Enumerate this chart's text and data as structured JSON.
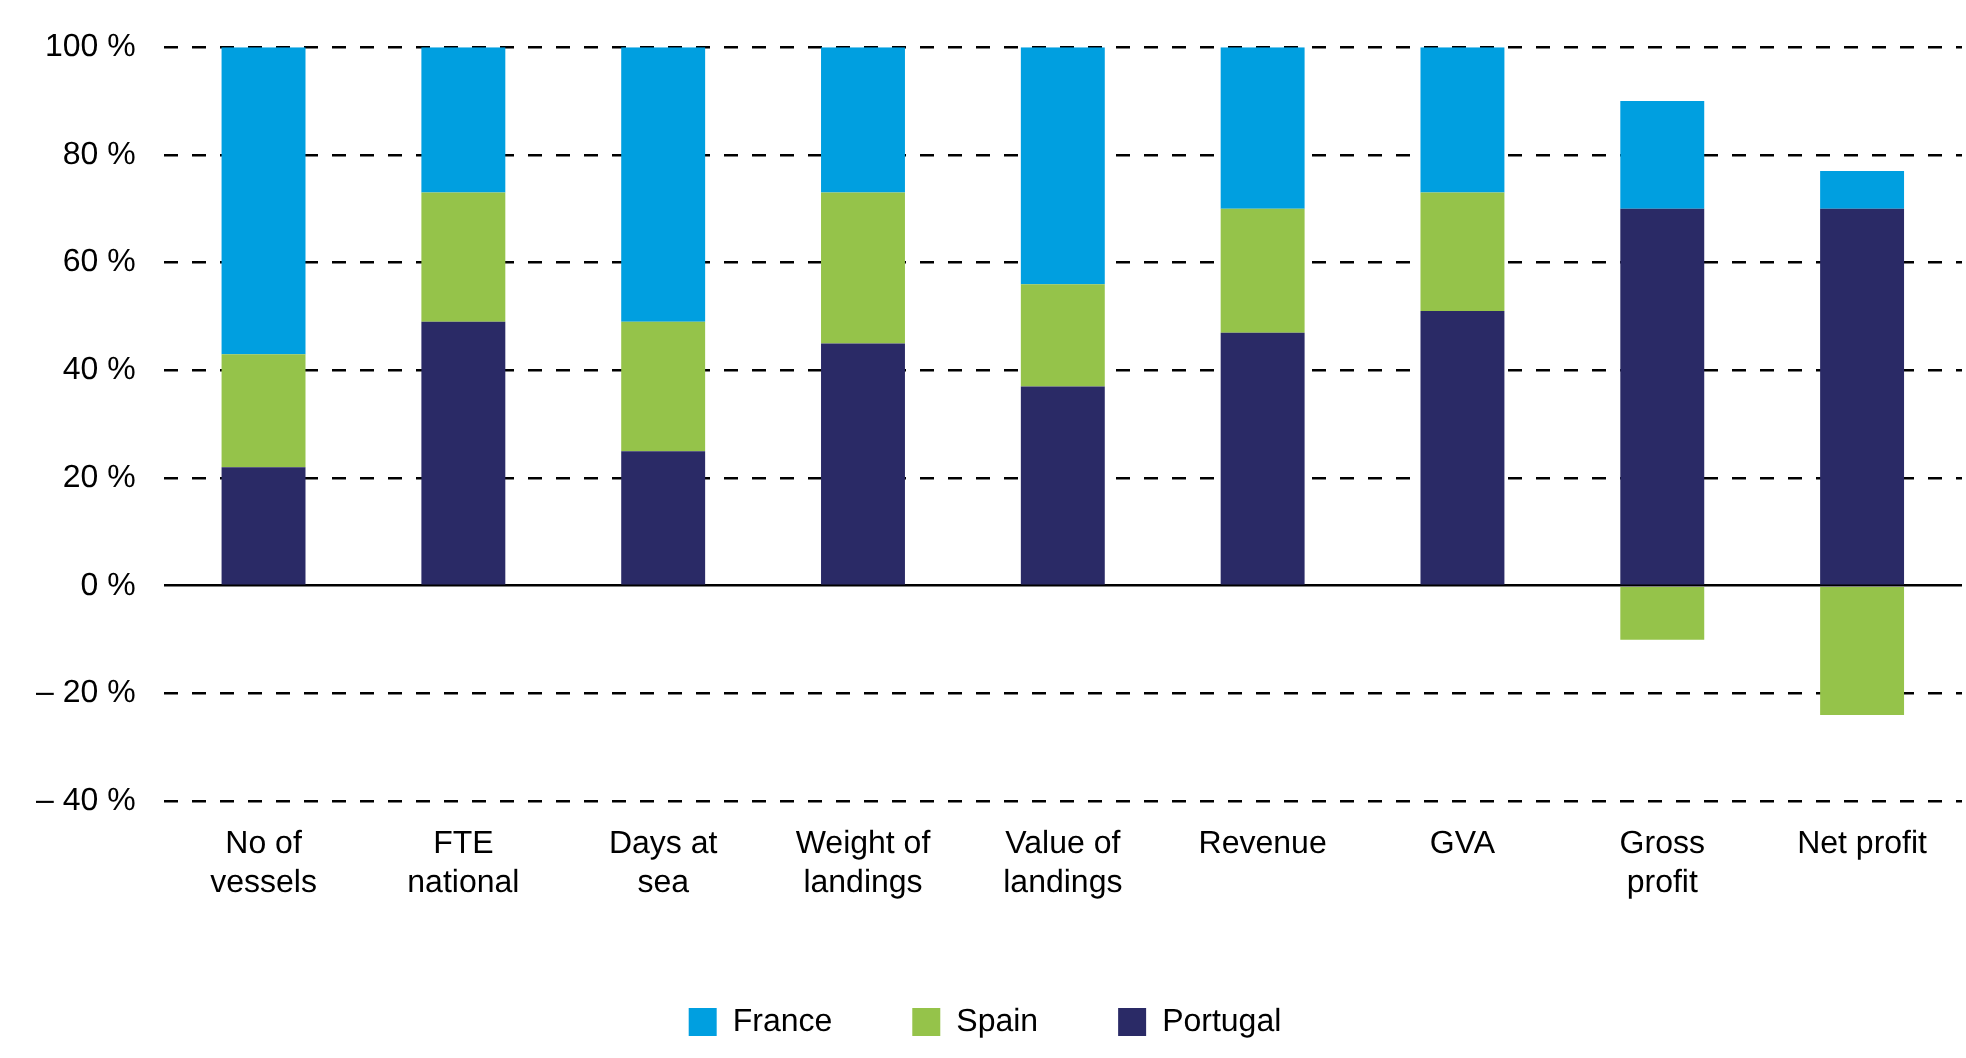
{
  "chart_data": {
    "type": "bar",
    "stacked": true,
    "categories": [
      "No of vessels",
      "FTE national",
      "Days at sea",
      "Weight of landings",
      "Value of landings",
      "Revenue",
      "GVA",
      "Gross profit",
      "Net profit"
    ],
    "series": [
      {
        "name": "Portugal",
        "color": "#2a2a66",
        "values": [
          22,
          49,
          25,
          45,
          37,
          47,
          51,
          70,
          70
        ]
      },
      {
        "name": "Spain",
        "color": "#95c34a",
        "values": [
          21,
          24,
          24,
          28,
          19,
          23,
          22,
          -10,
          -24
        ]
      },
      {
        "name": "France",
        "color": "#009fe0",
        "values": [
          57,
          27,
          51,
          27,
          44,
          30,
          27,
          20,
          7
        ]
      }
    ],
    "ylim": [
      -40,
      100
    ],
    "yticks": [
      {
        "value": -40,
        "label": "– 40 %"
      },
      {
        "value": -20,
        "label": "– 20 %"
      },
      {
        "value": 0,
        "label": "0 %"
      },
      {
        "value": 20,
        "label": "20 %"
      },
      {
        "value": 40,
        "label": "40 %"
      },
      {
        "value": 60,
        "label": "60 %"
      },
      {
        "value": 80,
        "label": "80 %"
      },
      {
        "value": 100,
        "label": "100 %"
      }
    ],
    "grid": "y",
    "legend": "bottom"
  }
}
